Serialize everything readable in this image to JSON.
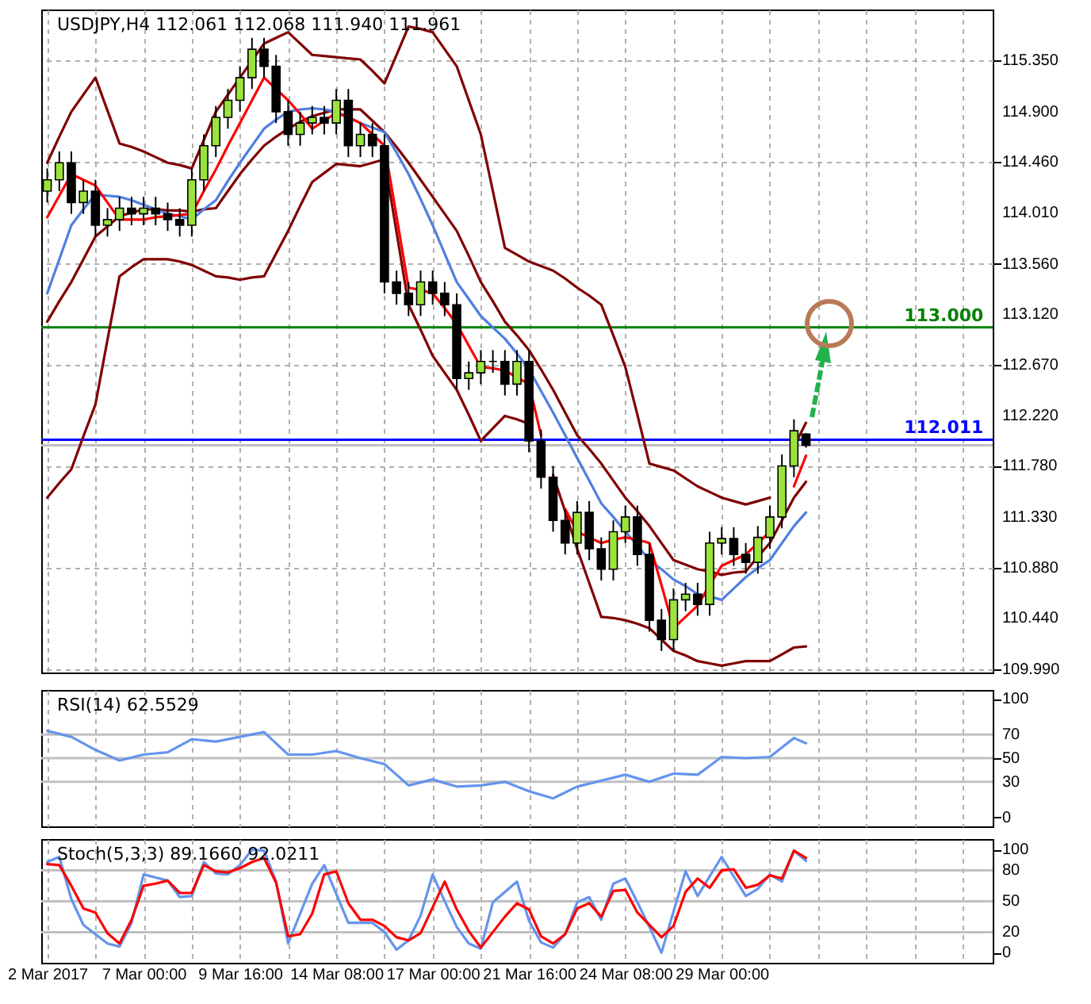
{
  "chart_data": [
    {
      "type": "candlestick",
      "title": "USDJPY,H4 112.061 112.068 111.940 111.961",
      "categories": [
        null,
        null,
        null,
        null,
        null,
        null,
        null,
        null,
        null,
        null,
        null,
        null,
        null,
        null,
        null,
        null,
        null,
        null,
        null,
        null,
        null,
        null,
        null,
        null,
        null,
        null,
        null,
        null,
        null,
        null,
        null,
        null,
        null,
        null,
        null,
        null,
        null,
        null,
        null,
        null,
        null,
        null,
        null,
        null,
        null,
        null,
        null,
        null,
        null,
        null,
        null,
        null,
        null,
        null,
        null,
        null,
        null,
        null,
        null,
        null,
        null,
        null,
        null,
        null,
        null,
        null,
        null,
        null,
        null,
        null,
        null,
        null,
        null,
        null,
        null,
        null,
        null,
        null,
        null
      ],
      "ohlc": [
        [
          114.2,
          114.4,
          114.1,
          114.3
        ],
        [
          114.3,
          114.55,
          114.2,
          114.45
        ],
        [
          114.45,
          114.55,
          114.0,
          114.1
        ],
        [
          114.1,
          114.3,
          114.0,
          114.2
        ],
        [
          114.2,
          114.3,
          113.8,
          113.9
        ],
        [
          113.9,
          114.05,
          113.8,
          113.95
        ],
        [
          113.95,
          114.15,
          113.85,
          114.05
        ],
        [
          114.05,
          114.15,
          113.9,
          114.0
        ],
        [
          114.0,
          114.15,
          113.9,
          114.05
        ],
        [
          114.05,
          114.15,
          113.9,
          114.0
        ],
        [
          114.0,
          114.1,
          113.85,
          113.95
        ],
        [
          113.95,
          114.05,
          113.8,
          113.9
        ],
        [
          113.9,
          114.4,
          113.8,
          114.3
        ],
        [
          114.3,
          114.7,
          114.2,
          114.6
        ],
        [
          114.6,
          114.95,
          114.5,
          114.85
        ],
        [
          114.85,
          115.1,
          114.75,
          115.0
        ],
        [
          115.0,
          115.3,
          114.9,
          115.2
        ],
        [
          115.2,
          115.55,
          115.1,
          115.45
        ],
        [
          115.45,
          115.55,
          115.2,
          115.3
        ],
        [
          115.3,
          115.4,
          114.8,
          114.9
        ],
        [
          114.9,
          115.0,
          114.6,
          114.7
        ],
        [
          114.7,
          114.9,
          114.6,
          114.8
        ],
        [
          114.8,
          114.95,
          114.7,
          114.85
        ],
        [
          114.85,
          114.95,
          114.7,
          114.8
        ],
        [
          114.8,
          115.1,
          114.7,
          115.0
        ],
        [
          115.0,
          115.1,
          114.5,
          114.6
        ],
        [
          114.6,
          114.8,
          114.5,
          114.7
        ],
        [
          114.7,
          114.8,
          114.5,
          114.6
        ],
        [
          114.6,
          114.7,
          113.3,
          113.4
        ],
        [
          113.4,
          113.5,
          113.2,
          113.3
        ],
        [
          113.3,
          113.4,
          113.1,
          113.2
        ],
        [
          113.2,
          113.5,
          113.1,
          113.4
        ],
        [
          113.4,
          113.5,
          113.2,
          113.3
        ],
        [
          113.3,
          113.4,
          113.1,
          113.2
        ],
        [
          113.2,
          113.3,
          112.45,
          112.55
        ],
        [
          112.55,
          112.7,
          112.45,
          112.6
        ],
        [
          112.6,
          112.8,
          112.5,
          112.7
        ],
        [
          112.7,
          112.8,
          112.6,
          112.7
        ],
        [
          112.7,
          112.8,
          112.4,
          112.5
        ],
        [
          112.5,
          112.8,
          112.4,
          112.7
        ],
        [
          112.7,
          112.8,
          111.9,
          112.0
        ],
        [
          112.0,
          112.1,
          111.58,
          111.68
        ],
        [
          111.68,
          111.78,
          111.2,
          111.3
        ],
        [
          111.3,
          111.4,
          111.0,
          111.1
        ],
        [
          111.1,
          111.47,
          111.0,
          111.37
        ],
        [
          111.37,
          111.47,
          110.95,
          111.05
        ],
        [
          111.05,
          111.15,
          110.77,
          110.87
        ],
        [
          110.87,
          111.3,
          110.77,
          111.2
        ],
        [
          111.2,
          111.43,
          111.1,
          111.33
        ],
        [
          111.33,
          111.43,
          110.9,
          111.0
        ],
        [
          111.0,
          111.1,
          110.32,
          110.42
        ],
        [
          110.42,
          110.52,
          110.15,
          110.25
        ],
        [
          110.25,
          110.7,
          110.15,
          110.6
        ],
        [
          110.6,
          110.75,
          110.5,
          110.65
        ],
        [
          110.65,
          110.75,
          110.46,
          110.56
        ],
        [
          110.56,
          111.2,
          110.46,
          111.1
        ],
        [
          111.1,
          111.24,
          111.0,
          111.14
        ],
        [
          111.14,
          111.24,
          110.9,
          111.0
        ],
        [
          111.0,
          111.1,
          110.83,
          110.93
        ],
        [
          110.93,
          111.25,
          110.83,
          111.15
        ],
        [
          111.15,
          111.43,
          111.05,
          111.33
        ],
        [
          111.33,
          111.88,
          111.23,
          111.78
        ],
        [
          111.78,
          112.19,
          111.68,
          112.09
        ],
        [
          112.061,
          112.068,
          111.94,
          111.961
        ],
        null,
        null,
        null,
        null,
        null,
        null,
        null,
        null,
        null,
        null,
        null,
        null,
        null,
        null,
        null
      ],
      "colors": [
        "#9be33a",
        "#9be33a",
        "#000000",
        "#9be33a",
        "#000000",
        "#9be33a",
        "#9be33a",
        "#000000",
        "#9be33a",
        "#000000",
        "#000000",
        "#000000",
        "#9be33a",
        "#9be33a",
        "#9be33a",
        "#9be33a",
        "#9be33a",
        "#9be33a",
        "#000000",
        "#000000",
        "#000000",
        "#9be33a",
        "#9be33a",
        "#000000",
        "#9be33a",
        "#000000",
        "#9be33a",
        "#000000",
        "#000000",
        "#000000",
        "#000000",
        "#9be33a",
        "#000000",
        "#000000",
        "#000000",
        "#9be33a",
        "#9be33a",
        "#000000",
        "#000000",
        "#9be33a",
        "#000000",
        "#000000",
        "#000000",
        "#000000",
        "#9be33a",
        "#000000",
        "#000000",
        "#9be33a",
        "#9be33a",
        "#000000",
        "#000000",
        "#000000",
        "#9be33a",
        "#9be33a",
        "#000000",
        "#9be33a",
        "#9be33a",
        "#000000",
        "#000000",
        "#9be33a",
        "#9be33a",
        "#9be33a",
        "#9be33a",
        "#000000",
        null,
        null,
        null,
        null,
        null,
        null,
        null,
        null,
        null,
        null,
        null,
        null,
        null,
        null,
        null
      ],
      "series": [
        {
          "type": "line",
          "color": "#800000",
          "values": [
            114.45,
            114.68,
            114.9,
            115.05,
            115.2,
            114.91,
            114.62,
            114.59,
            114.55,
            114.5,
            114.45,
            114.43,
            114.4,
            114.65,
            114.9,
            115.05,
            115.2,
            115.35,
            115.5,
            115.55,
            115.6,
            115.5,
            115.4,
            115.39,
            115.38,
            115.37,
            115.36,
            115.26,
            115.15,
            115.4,
            115.65,
            115.63,
            115.6,
            115.45,
            115.3,
            115.0,
            114.7,
            114.2,
            113.7,
            113.64,
            113.58,
            113.54,
            113.5,
            113.43,
            113.35,
            113.28,
            113.2,
            112.93,
            112.65,
            112.23,
            111.8,
            111.77,
            111.74,
            111.67,
            111.6,
            111.55,
            111.5,
            111.47,
            111.44,
            111.47,
            111.5,
            null,
            111.95,
            112.16,
            null,
            null,
            null,
            null,
            null,
            null,
            null,
            null,
            null,
            null,
            null,
            null,
            null,
            null,
            null
          ]
        },
        {
          "type": "line",
          "color": "#800000",
          "values": [
            113.05,
            113.23,
            113.4,
            113.6,
            113.8,
            113.89,
            113.98,
            114.01,
            114.04,
            114.04,
            114.03,
            114.03,
            114.02,
            114.04,
            114.05,
            114.2,
            114.35,
            114.48,
            114.6,
            114.68,
            114.75,
            114.81,
            114.86,
            114.89,
            114.92,
            114.92,
            114.92,
            114.82,
            114.72,
            114.59,
            114.45,
            114.3,
            114.15,
            114.0,
            113.85,
            113.63,
            113.4,
            113.23,
            113.05,
            112.93,
            112.8,
            112.63,
            112.45,
            112.25,
            112.05,
            111.93,
            111.8,
            111.65,
            111.5,
            111.38,
            111.25,
            111.1,
            110.95,
            110.91,
            110.87,
            110.85,
            110.82,
            110.84,
            110.85,
            110.98,
            111.1,
            111.3,
            111.5,
            111.64,
            null,
            null,
            null,
            null,
            null,
            null,
            null,
            null,
            null,
            null,
            null,
            null,
            null,
            null,
            null
          ]
        },
        {
          "type": "line",
          "color": "#800000",
          "values": [
            111.5,
            111.63,
            111.75,
            112.04,
            112.32,
            112.89,
            113.45,
            113.53,
            113.6,
            113.6,
            113.6,
            113.58,
            113.55,
            113.5,
            113.45,
            113.44,
            113.42,
            113.44,
            113.45,
            113.65,
            113.85,
            114.07,
            114.28,
            114.36,
            114.44,
            114.43,
            114.42,
            114.45,
            114.48,
            113.84,
            113.2,
            112.98,
            112.75,
            112.6,
            112.45,
            112.23,
            112.0,
            112.11,
            112.22,
            112.19,
            112.15,
            null,
            111.7,
            111.38,
            111.05,
            110.75,
            110.45,
            110.44,
            110.42,
            110.39,
            110.35,
            110.25,
            110.15,
            110.11,
            110.06,
            110.04,
            110.02,
            110.04,
            110.06,
            110.06,
            110.06,
            110.12,
            110.18,
            110.19,
            null,
            null,
            null,
            null,
            null,
            null,
            null,
            null,
            null,
            null,
            null,
            null,
            null,
            null,
            null
          ]
        },
        {
          "type": "line",
          "color": "#4f7fe0",
          "values": [
            113.3,
            113.6,
            113.9,
            114.04,
            114.17,
            114.16,
            114.15,
            114.12,
            114.08,
            114.04,
            114.0,
            113.98,
            113.95,
            114.04,
            114.12,
            114.29,
            114.45,
            114.6,
            114.75,
            114.83,
            114.9,
            114.92,
            114.93,
            114.92,
            114.9,
            114.85,
            114.8,
            114.76,
            114.72,
            114.54,
            114.35,
            114.13,
            113.9,
            113.65,
            113.4,
            113.25,
            113.1,
            113.0,
            112.9,
            112.77,
            112.63,
            112.44,
            112.25,
            112.05,
            111.85,
            111.65,
            111.45,
            111.33,
            111.2,
            111.08,
            110.95,
            110.87,
            110.78,
            110.72,
            110.65,
            110.63,
            110.6,
            110.7,
            110.8,
            110.88,
            110.95,
            111.1,
            111.25,
            111.37,
            null,
            null,
            null,
            null,
            null,
            null,
            null,
            null,
            null,
            null,
            null,
            null,
            null,
            null,
            null
          ]
        },
        {
          "type": "line",
          "color": "#ff0000",
          "values": [
            113.97,
            114.16,
            114.35,
            114.3,
            114.25,
            114.1,
            113.95,
            113.95,
            113.95,
            113.97,
            113.98,
            113.99,
            114.0,
            114.2,
            114.39,
            114.6,
            114.8,
            115.0,
            115.2,
            115.1,
            115.0,
            114.88,
            114.75,
            114.82,
            114.89,
            114.85,
            114.8,
            114.7,
            114.6,
            113.98,
            113.35,
            113.33,
            113.3,
            113.17,
            113.03,
            112.84,
            112.65,
            112.64,
            112.62,
            112.56,
            112.5,
            112.05,
            null,
            111.4,
            111.2,
            111.15,
            111.1,
            111.13,
            111.15,
            111.13,
            111.1,
            110.73,
            110.35,
            110.45,
            110.55,
            110.73,
            110.9,
            110.95,
            111.0,
            111.1,
            111.2,
            null,
            111.6,
            111.87,
            null,
            null,
            null,
            null,
            null,
            null,
            null,
            null,
            null,
            null,
            null,
            null,
            null,
            null,
            null
          ]
        }
      ],
      "ylim": [
        109.96,
        115.8
      ],
      "yticks": [
        {
          "value": 115.35,
          "label": "115.350"
        },
        {
          "value": 114.9,
          "label": "114.900"
        },
        {
          "value": 114.46,
          "label": "114.460"
        },
        {
          "value": 114.01,
          "label": "114.010"
        },
        {
          "value": 113.56,
          "label": "113.560"
        },
        {
          "value": 113.12,
          "label": "113.120"
        },
        {
          "value": 112.67,
          "label": "112.670"
        },
        {
          "value": 112.22,
          "label": "112.220"
        },
        {
          "value": 111.78,
          "label": "111.780"
        },
        {
          "value": 111.33,
          "label": "111.330"
        },
        {
          "value": 110.88,
          "label": "110.880"
        },
        {
          "value": 110.44,
          "label": "110.440"
        },
        {
          "value": 109.99,
          "label": "109.990"
        }
      ],
      "tick_labels": "y",
      "grid": true,
      "ref_lines": [
        {
          "axis": "y",
          "value": 113.0,
          "label": "113.000",
          "color": "#008000"
        },
        {
          "axis": "y",
          "value": 112.011,
          "label": "112.011",
          "color": "#0000ff"
        },
        {
          "axis": "y",
          "value": 111.961,
          "color": "#c0c0c0"
        }
      ]
    },
    {
      "type": "line",
      "title": "RSI(14) 62.5529",
      "categories": [
        null,
        null,
        null,
        null,
        null,
        null,
        null,
        null,
        null,
        null,
        null,
        null,
        null,
        null,
        null,
        null,
        null,
        null,
        null,
        null,
        null,
        null,
        null,
        null,
        null,
        null,
        null,
        null,
        null,
        null,
        null,
        null,
        null,
        null,
        null,
        null,
        null,
        null,
        null,
        null,
        null,
        null,
        null,
        null,
        null,
        null,
        null,
        null,
        null,
        null,
        null,
        null,
        null,
        null,
        null,
        null,
        null,
        null,
        null,
        null,
        null,
        null,
        null,
        null,
        null,
        null,
        null,
        null,
        null,
        null,
        null,
        null,
        null,
        null,
        null,
        null,
        null,
        null,
        null
      ],
      "series": [
        {
          "color": "#6495ed",
          "values": [
            73,
            70.5,
            68,
            62.5,
            57,
            52.5,
            48,
            50.5,
            53,
            54,
            55,
            60.5,
            66,
            65,
            64,
            66,
            68,
            70,
            72,
            62.5,
            53,
            53,
            53,
            54.5,
            56,
            53,
            50,
            47.5,
            45,
            36,
            27,
            29.5,
            32,
            29,
            26,
            26.5,
            27,
            28.5,
            30,
            26,
            22,
            19,
            16,
            21,
            26,
            28.5,
            31,
            33.5,
            36,
            33,
            30,
            33.5,
            37,
            36.5,
            36,
            43.5,
            51,
            50.5,
            50,
            50.5,
            51,
            59,
            67,
            62.6,
            null,
            null,
            null,
            null,
            null,
            null,
            null,
            null,
            null,
            null,
            null,
            null,
            null,
            null,
            null
          ]
        }
      ],
      "ylim": [
        -7.6,
        107.6
      ],
      "yticks": [
        0,
        30,
        50,
        70,
        100
      ],
      "tick_labels": "y",
      "grid": "x",
      "ref_lines": [
        {
          "axis": "y",
          "value": 70,
          "color": "#c0c0c0"
        },
        {
          "axis": "y",
          "value": 50,
          "color": "#c0c0c0"
        },
        {
          "axis": "y",
          "value": 30,
          "color": "#c0c0c0"
        }
      ]
    },
    {
      "type": "line",
      "title": "Stoch(5,3,3) 89.1660 92.0211",
      "categories": [
        "2 Mar 2017",
        null,
        null,
        null,
        null,
        null,
        null,
        null,
        "7 Mar 00:00",
        null,
        null,
        null,
        null,
        null,
        null,
        null,
        "9 Mar 16:00",
        null,
        null,
        null,
        null,
        null,
        null,
        null,
        "14 Mar 08:00",
        null,
        null,
        null,
        null,
        null,
        null,
        null,
        "17 Mar 00:00",
        null,
        null,
        null,
        null,
        null,
        null,
        null,
        "21 Mar 16:00",
        null,
        null,
        null,
        null,
        null,
        null,
        null,
        "24 Mar 08:00",
        null,
        null,
        null,
        null,
        null,
        null,
        null,
        "29 Mar 00:00",
        null,
        null,
        null,
        null,
        null,
        null,
        null,
        null,
        null,
        null,
        null,
        null,
        null,
        null,
        null,
        null,
        null,
        null,
        null,
        null,
        null,
        null
      ],
      "series": [
        {
          "color": "#6495ed",
          "values": [
            88,
            93,
            52,
            27,
            18,
            9,
            6,
            29,
            76,
            73,
            70,
            54,
            55,
            88,
            77,
            76,
            85,
            100,
            99,
            69,
            9,
            38,
            67,
            85,
            57,
            29,
            29,
            29,
            20,
            3,
            12,
            36,
            76,
            50,
            25,
            9,
            4,
            49,
            59,
            69,
            31,
            10,
            5,
            18,
            49,
            54,
            32,
            67,
            72,
            49,
            25,
            0,
            40,
            79,
            55,
            74,
            93,
            74,
            55,
            62,
            76,
            69,
            99,
            89.2,
            null,
            null,
            null,
            null,
            null,
            null,
            null,
            null,
            null,
            null,
            null,
            null,
            null,
            null,
            null
          ]
        },
        {
          "color": "#ff0000",
          "values": [
            86,
            85,
            65,
            43,
            39,
            19,
            9,
            32,
            65,
            67,
            70,
            58,
            58,
            85,
            79,
            78,
            82,
            88,
            92,
            68,
            16,
            18,
            38,
            76,
            79,
            48,
            32,
            32,
            26,
            15,
            12,
            19,
            44,
            69,
            42,
            21,
            5,
            20,
            35,
            48,
            42,
            16,
            9,
            18,
            43,
            48,
            35,
            60,
            61,
            39,
            27,
            15,
            26,
            59,
            72,
            63,
            80,
            81,
            63,
            66,
            75,
            72,
            99,
            92.0,
            null,
            null,
            null,
            null,
            null,
            null,
            null,
            null,
            null,
            null,
            null,
            null,
            null,
            null,
            null
          ]
        }
      ],
      "ylim": [
        -9.7,
        110.3
      ],
      "yticks": [
        0,
        20,
        50,
        80,
        100
      ],
      "grid": "x",
      "ref_lines": [
        {
          "axis": "y",
          "value": 80,
          "color": "#c0c0c0"
        },
        {
          "axis": "y",
          "value": 50,
          "color": "#c0c0c0"
        },
        {
          "axis": "y",
          "value": 20,
          "color": "#c0c0c0"
        }
      ]
    }
  ]
}
